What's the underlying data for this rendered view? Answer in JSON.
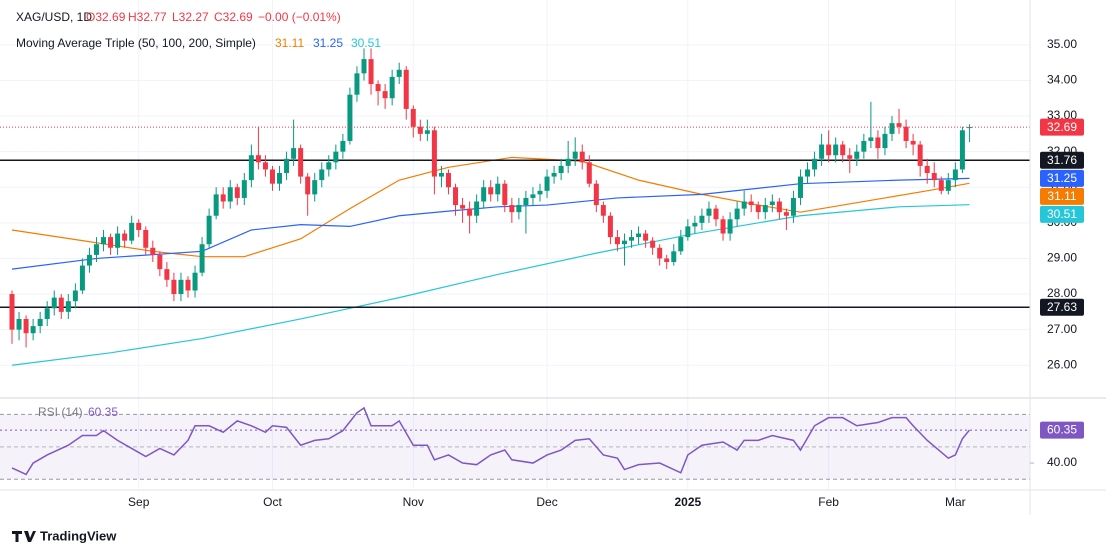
{
  "header": {
    "symbol": "XAG/USD, 1D",
    "open": "O32.69",
    "high": "H32.77",
    "low": "L32.27",
    "close": "C32.69",
    "change": "−0.00 (−0.01%)",
    "indicator": "Moving Average Triple (50, 100, 200, Simple)"
  },
  "chart_data": [
    {
      "type": "candlestick",
      "up_color": "#089981",
      "down_color": "#f23645",
      "ohlc": [
        [
          28.0,
          28.1,
          26.6,
          27.0
        ],
        [
          27.0,
          27.5,
          26.7,
          27.3
        ],
        [
          27.3,
          27.4,
          26.5,
          26.9
        ],
        [
          26.9,
          27.3,
          26.7,
          27.1
        ],
        [
          27.1,
          27.5,
          26.9,
          27.3
        ],
        [
          27.3,
          27.8,
          27.1,
          27.6
        ],
        [
          27.6,
          28.1,
          27.4,
          27.9
        ],
        [
          27.9,
          28.0,
          27.3,
          27.5
        ],
        [
          27.5,
          28.0,
          27.3,
          27.8
        ],
        [
          27.8,
          28.3,
          27.6,
          28.1
        ],
        [
          28.1,
          29.0,
          28.0,
          28.8
        ],
        [
          28.8,
          29.3,
          28.6,
          29.1
        ],
        [
          29.1,
          29.6,
          28.9,
          29.4
        ],
        [
          29.4,
          29.8,
          29.2,
          29.6
        ],
        [
          29.6,
          29.7,
          29.1,
          29.3
        ],
        [
          29.3,
          29.9,
          29.1,
          29.7
        ],
        [
          29.7,
          29.8,
          29.3,
          29.5
        ],
        [
          29.5,
          30.2,
          29.4,
          30.0
        ],
        [
          30.0,
          30.1,
          29.6,
          29.8
        ],
        [
          29.8,
          29.9,
          29.1,
          29.3
        ],
        [
          29.3,
          29.5,
          28.9,
          29.1
        ],
        [
          29.1,
          29.2,
          28.5,
          28.7
        ],
        [
          28.7,
          28.9,
          28.2,
          28.4
        ],
        [
          28.4,
          28.6,
          27.8,
          28.0
        ],
        [
          28.0,
          28.6,
          27.8,
          28.4
        ],
        [
          28.4,
          28.5,
          27.9,
          28.1
        ],
        [
          28.1,
          28.8,
          27.9,
          28.6
        ],
        [
          28.6,
          29.6,
          28.5,
          29.4
        ],
        [
          29.4,
          30.4,
          29.3,
          30.2
        ],
        [
          30.2,
          31.0,
          30.1,
          30.8
        ],
        [
          30.8,
          31.0,
          30.4,
          30.6
        ],
        [
          30.6,
          31.2,
          30.4,
          31.0
        ],
        [
          31.0,
          31.1,
          30.5,
          30.7
        ],
        [
          30.7,
          31.4,
          30.5,
          31.2
        ],
        [
          31.2,
          32.2,
          31.0,
          31.9
        ],
        [
          31.9,
          32.7,
          31.5,
          31.7
        ],
        [
          31.7,
          31.9,
          31.3,
          31.5
        ],
        [
          31.5,
          31.6,
          30.9,
          31.1
        ],
        [
          31.1,
          31.6,
          30.9,
          31.4
        ],
        [
          31.4,
          32.0,
          31.2,
          31.8
        ],
        [
          31.8,
          32.9,
          31.6,
          32.1
        ],
        [
          32.1,
          32.2,
          31.1,
          31.3
        ],
        [
          31.3,
          31.4,
          30.2,
          30.8
        ],
        [
          30.8,
          31.4,
          30.6,
          31.2
        ],
        [
          31.2,
          31.7,
          31.0,
          31.5
        ],
        [
          31.5,
          31.9,
          31.3,
          31.7
        ],
        [
          31.7,
          32.2,
          31.5,
          32.0
        ],
        [
          32.0,
          32.5,
          31.8,
          32.3
        ],
        [
          32.3,
          33.8,
          32.2,
          33.6
        ],
        [
          33.6,
          34.4,
          33.4,
          34.2
        ],
        [
          34.2,
          34.9,
          34.0,
          34.6
        ],
        [
          34.6,
          34.9,
          33.6,
          33.9
        ],
        [
          33.9,
          34.0,
          33.3,
          33.7
        ],
        [
          33.7,
          33.9,
          33.2,
          33.5
        ],
        [
          33.5,
          34.3,
          33.3,
          34.1
        ],
        [
          34.1,
          34.5,
          33.9,
          34.3
        ],
        [
          34.3,
          34.4,
          32.9,
          33.2
        ],
        [
          33.2,
          33.3,
          32.4,
          32.7
        ],
        [
          32.7,
          32.9,
          32.3,
          32.5
        ],
        [
          32.5,
          32.9,
          32.3,
          32.6
        ],
        [
          32.6,
          32.7,
          30.8,
          31.3
        ],
        [
          31.3,
          31.6,
          31.0,
          31.4
        ],
        [
          31.4,
          31.5,
          30.8,
          31.0
        ],
        [
          31.0,
          31.1,
          30.2,
          30.5
        ],
        [
          30.5,
          30.7,
          30.0,
          30.4
        ],
        [
          30.4,
          30.6,
          29.7,
          30.2
        ],
        [
          30.2,
          30.8,
          30.0,
          30.6
        ],
        [
          30.6,
          31.2,
          30.4,
          31.0
        ],
        [
          31.0,
          31.2,
          30.6,
          30.8
        ],
        [
          30.8,
          31.3,
          30.6,
          31.1
        ],
        [
          31.1,
          31.2,
          30.3,
          30.5
        ],
        [
          30.5,
          30.7,
          30.0,
          30.3
        ],
        [
          30.3,
          30.7,
          30.1,
          30.5
        ],
        [
          30.5,
          30.9,
          29.7,
          30.7
        ],
        [
          30.7,
          31.0,
          30.5,
          30.8
        ],
        [
          30.8,
          31.1,
          30.6,
          30.9
        ],
        [
          30.9,
          31.5,
          30.7,
          31.3
        ],
        [
          31.3,
          31.6,
          31.1,
          31.4
        ],
        [
          31.4,
          31.8,
          31.2,
          31.6
        ],
        [
          31.6,
          32.3,
          31.4,
          31.8
        ],
        [
          31.8,
          32.4,
          31.6,
          32.0
        ],
        [
          32.0,
          32.2,
          31.5,
          31.7
        ],
        [
          31.7,
          31.9,
          31.0,
          31.1
        ],
        [
          31.1,
          31.2,
          30.3,
          30.5
        ],
        [
          30.5,
          30.6,
          30.0,
          30.2
        ],
        [
          30.2,
          30.3,
          29.4,
          29.6
        ],
        [
          29.6,
          29.8,
          29.2,
          29.4
        ],
        [
          29.4,
          29.7,
          28.8,
          29.5
        ],
        [
          29.5,
          29.8,
          29.3,
          29.6
        ],
        [
          29.6,
          29.9,
          29.4,
          29.7
        ],
        [
          29.7,
          29.8,
          29.3,
          29.5
        ],
        [
          29.5,
          29.6,
          29.1,
          29.3
        ],
        [
          29.3,
          29.4,
          28.8,
          29.0
        ],
        [
          29.0,
          29.1,
          28.7,
          28.9
        ],
        [
          28.9,
          29.4,
          28.8,
          29.2
        ],
        [
          29.2,
          29.8,
          29.1,
          29.6
        ],
        [
          29.6,
          30.1,
          29.5,
          29.9
        ],
        [
          29.9,
          30.2,
          29.7,
          30.0
        ],
        [
          30.0,
          30.4,
          29.8,
          30.2
        ],
        [
          30.2,
          30.6,
          30.0,
          30.4
        ],
        [
          30.4,
          30.5,
          29.9,
          30.1
        ],
        [
          30.1,
          30.2,
          29.5,
          29.7
        ],
        [
          29.7,
          30.3,
          29.5,
          30.1
        ],
        [
          30.1,
          30.6,
          29.9,
          30.4
        ],
        [
          30.4,
          30.9,
          30.2,
          30.6
        ],
        [
          30.6,
          30.8,
          30.3,
          30.5
        ],
        [
          30.5,
          30.6,
          30.1,
          30.3
        ],
        [
          30.3,
          30.7,
          30.1,
          30.5
        ],
        [
          30.5,
          30.8,
          30.3,
          30.6
        ],
        [
          30.6,
          30.7,
          30.1,
          30.3
        ],
        [
          30.3,
          30.4,
          29.8,
          30.2
        ],
        [
          30.2,
          30.9,
          30.0,
          30.7
        ],
        [
          30.7,
          31.5,
          30.5,
          31.3
        ],
        [
          31.3,
          31.7,
          31.1,
          31.5
        ],
        [
          31.5,
          32.0,
          31.3,
          31.8
        ],
        [
          31.8,
          32.5,
          31.6,
          32.2
        ],
        [
          32.2,
          32.6,
          31.7,
          31.9
        ],
        [
          31.9,
          32.4,
          31.7,
          32.2
        ],
        [
          32.2,
          32.3,
          31.7,
          31.9
        ],
        [
          31.9,
          32.1,
          31.4,
          31.8
        ],
        [
          31.8,
          32.2,
          31.6,
          32.0
        ],
        [
          32.0,
          32.5,
          31.8,
          32.3
        ],
        [
          32.3,
          33.4,
          32.1,
          32.4
        ],
        [
          32.4,
          32.6,
          31.8,
          32.1
        ],
        [
          32.1,
          32.7,
          31.9,
          32.5
        ],
        [
          32.5,
          33.0,
          32.3,
          32.8
        ],
        [
          32.8,
          33.2,
          32.5,
          32.7
        ],
        [
          32.7,
          32.9,
          32.1,
          32.3
        ],
        [
          32.3,
          32.5,
          31.9,
          32.2
        ],
        [
          32.2,
          32.3,
          31.3,
          31.6
        ],
        [
          31.6,
          31.8,
          31.1,
          31.4
        ],
        [
          31.4,
          31.7,
          31.0,
          31.2
        ],
        [
          31.2,
          31.3,
          30.8,
          30.9
        ],
        [
          30.9,
          31.4,
          30.8,
          31.2
        ],
        [
          31.2,
          31.7,
          31.0,
          31.5
        ],
        [
          31.5,
          32.7,
          31.4,
          32.6
        ],
        [
          32.69,
          32.77,
          32.27,
          32.69
        ]
      ],
      "series": [
        {
          "color": "#f57c00",
          "x": [
            0,
            10,
            20,
            27,
            33,
            41,
            48,
            55,
            62,
            71,
            81,
            89,
            98,
            106,
            112,
            118,
            124,
            130,
            136
          ],
          "values": [
            29.8,
            29.5,
            29.2,
            29.05,
            29.05,
            29.55,
            30.4,
            31.2,
            31.56,
            31.84,
            31.73,
            31.2,
            30.8,
            30.5,
            30.3,
            30.5,
            30.7,
            30.9,
            31.11
          ]
        },
        {
          "color": "#2962ff",
          "x": [
            0,
            12,
            27,
            34,
            41,
            48,
            55,
            62,
            69,
            76,
            86,
            98,
            112,
            126,
            136
          ],
          "values": [
            28.7,
            29.0,
            29.2,
            29.8,
            29.95,
            29.9,
            30.2,
            30.33,
            30.45,
            30.5,
            30.7,
            30.8,
            31.1,
            31.2,
            31.25
          ]
        },
        {
          "color": "#26c6da",
          "x": [
            0,
            14,
            27,
            41,
            55,
            69,
            83,
            97,
            112,
            126,
            136
          ],
          "values": [
            26.0,
            26.35,
            26.75,
            27.3,
            27.9,
            28.55,
            29.15,
            29.7,
            30.2,
            30.45,
            30.51
          ]
        }
      ],
      "hlines": [
        31.76,
        27.63
      ],
      "ylim": [
        25.08,
        36.26
      ],
      "yticks": [
        {
          "value": 26,
          "label": "26.00"
        },
        {
          "value": 27,
          "label": "27.00"
        },
        {
          "value": 28,
          "label": "28.00"
        },
        {
          "value": 29,
          "label": "29.00"
        },
        {
          "value": 30,
          "label": "30.00"
        },
        {
          "value": 31,
          "label": "31.00"
        },
        {
          "value": 32,
          "label": "32.00"
        },
        {
          "value": 33,
          "label": "33.00"
        },
        {
          "value": 34,
          "label": "34.00"
        },
        {
          "value": 35,
          "label": "35.00"
        }
      ],
      "xticks": [
        {
          "value": 18,
          "label": "Sep"
        },
        {
          "value": 37,
          "label": "Oct"
        },
        {
          "value": 57,
          "label": "Nov"
        },
        {
          "value": 76,
          "label": "Dec"
        },
        {
          "value": 96,
          "label": "2025"
        },
        {
          "value": 116,
          "label": "Feb"
        },
        {
          "value": 134,
          "label": "Mar"
        }
      ],
      "grid": true
    },
    {
      "type": "line",
      "title": "RSI (14)",
      "color": "#7e57c2",
      "x": [
        0,
        2,
        3,
        5,
        8,
        10,
        12,
        13,
        15,
        17,
        19,
        21,
        23,
        25,
        26,
        28,
        30,
        32,
        34,
        36,
        37,
        39,
        41,
        43,
        45,
        47,
        49,
        50,
        51,
        54,
        55,
        57,
        59,
        60,
        62,
        64,
        66,
        68,
        70,
        71,
        74,
        76,
        78,
        80,
        82,
        84,
        86,
        87,
        89,
        92,
        95,
        96,
        98,
        101,
        103,
        104,
        106,
        108,
        111,
        112,
        114,
        116,
        118,
        120,
        123,
        125,
        127,
        128,
        130,
        133,
        134,
        135,
        136
      ],
      "values": [
        37,
        33,
        40,
        45,
        51,
        57,
        57,
        60,
        54,
        49,
        44,
        49,
        45,
        54,
        63,
        63,
        59,
        66,
        63,
        59,
        63,
        62,
        51,
        54,
        55,
        60,
        71,
        74,
        63,
        63,
        66,
        51,
        51,
        42,
        45,
        40,
        39,
        45,
        48,
        42,
        40,
        45,
        48,
        54,
        55,
        45,
        43,
        36,
        39,
        40,
        34,
        45,
        51,
        53,
        48,
        54,
        54,
        57,
        54,
        48,
        63,
        68,
        68,
        63,
        65,
        68,
        68,
        63,
        54,
        43,
        45,
        55,
        60.35
      ],
      "ylim": [
        24.6,
        78.9
      ],
      "yticks": [
        {
          "value": 40,
          "label": "40.00"
        }
      ],
      "bands": [
        30,
        70
      ],
      "midline": 50
    }
  ],
  "footer": {
    "brand": "TradingView"
  }
}
